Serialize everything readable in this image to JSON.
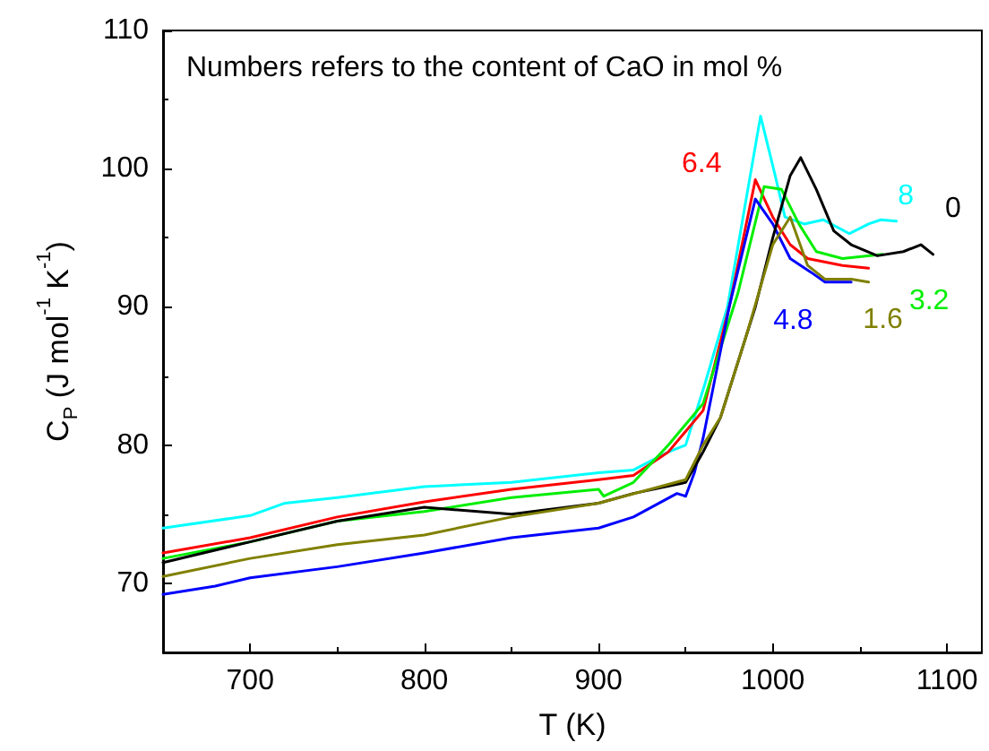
{
  "chart_data": {
    "type": "line",
    "xlabel": "T (K)",
    "ylabel": "C$_{P}$ (J mol$^{-1}$ K$^{-1}$)",
    "annotations": [
      "Numbers refers to the content of CaO in mol %"
    ],
    "xlim": [
      650,
      1120
    ],
    "xticks": [
      700,
      800,
      900,
      1000,
      1100
    ],
    "ylim": [
      65,
      110
    ],
    "yticks": [
      70,
      80,
      90,
      100,
      110
    ],
    "grid": false,
    "legend": false,
    "marker": "none",
    "line_style": "solid",
    "series": [
      {
        "name": "8",
        "color": "#00ffff",
        "x": [
          650,
          700,
          720,
          750,
          800,
          850,
          900,
          920,
          940,
          950,
          961,
          974,
          985,
          993,
          1001,
          1007,
          1018,
          1029,
          1044,
          1055,
          1062,
          1071
        ],
        "values": [
          74.0,
          74.9,
          75.8,
          76.2,
          77.0,
          77.3,
          78.0,
          78.2,
          79.5,
          80,
          84.4,
          90,
          98,
          103.8,
          99.7,
          96.5,
          96.0,
          96.3,
          95.3,
          96.0,
          96.3,
          96.2
        ]
      },
      {
        "name": "6.4",
        "color": "#ff0000",
        "x": [
          650,
          700,
          750,
          800,
          850,
          900,
          920,
          940,
          960,
          975,
          990,
          1000,
          1010,
          1020,
          1040,
          1055
        ],
        "values": [
          72.2,
          73.3,
          74.8,
          75.9,
          76.8,
          77.5,
          77.8,
          79.5,
          82.5,
          90,
          99.2,
          96.5,
          94.5,
          93.5,
          93.0,
          92.8
        ]
      },
      {
        "name": "3.2",
        "color": "#00ee00",
        "x": [
          650,
          700,
          750,
          800,
          850,
          900,
          903,
          920,
          940,
          960,
          980,
          995,
          1005,
          1015,
          1025,
          1040,
          1063
        ],
        "values": [
          71.8,
          73.0,
          74.5,
          75.2,
          76.2,
          76.8,
          76.3,
          77.3,
          80,
          83,
          91,
          98.7,
          98.5,
          96,
          94,
          93.5,
          93.8
        ]
      },
      {
        "name": "4.8",
        "color": "#0000ff",
        "x": [
          650,
          680,
          700,
          750,
          800,
          850,
          900,
          920,
          945,
          950,
          955,
          960,
          975,
          990,
          1000,
          1010,
          1022,
          1030,
          1045
        ],
        "values": [
          69.2,
          69.8,
          70.4,
          71.2,
          72.2,
          73.3,
          74.0,
          74.8,
          76.5,
          76.3,
          78,
          80.5,
          90,
          97.8,
          96,
          93.5,
          92.5,
          91.8,
          91.8
        ]
      },
      {
        "name": "0",
        "color": "#000000",
        "x": [
          650,
          700,
          750,
          800,
          850,
          900,
          920,
          950,
          960,
          970,
          990,
          1000,
          1010,
          1016,
          1025,
          1035,
          1045,
          1060,
          1075,
          1085,
          1092
        ],
        "values": [
          71.5,
          73.0,
          74.5,
          75.5,
          75.0,
          75.8,
          76.5,
          77.3,
          79.5,
          82,
          90,
          95,
          99.5,
          100.8,
          98.5,
          95.5,
          94.5,
          93.7,
          94.0,
          94.5,
          93.8
        ]
      },
      {
        "name": "1.6",
        "color": "#808000",
        "x": [
          650,
          700,
          750,
          800,
          850,
          900,
          950,
          960,
          970,
          985,
          1000,
          1010,
          1020,
          1030,
          1045,
          1055
        ],
        "values": [
          70.5,
          71.8,
          72.8,
          73.5,
          74.8,
          75.8,
          77.5,
          80,
          82,
          88,
          94.5,
          96.5,
          93,
          92,
          92,
          91.8
        ]
      }
    ]
  }
}
